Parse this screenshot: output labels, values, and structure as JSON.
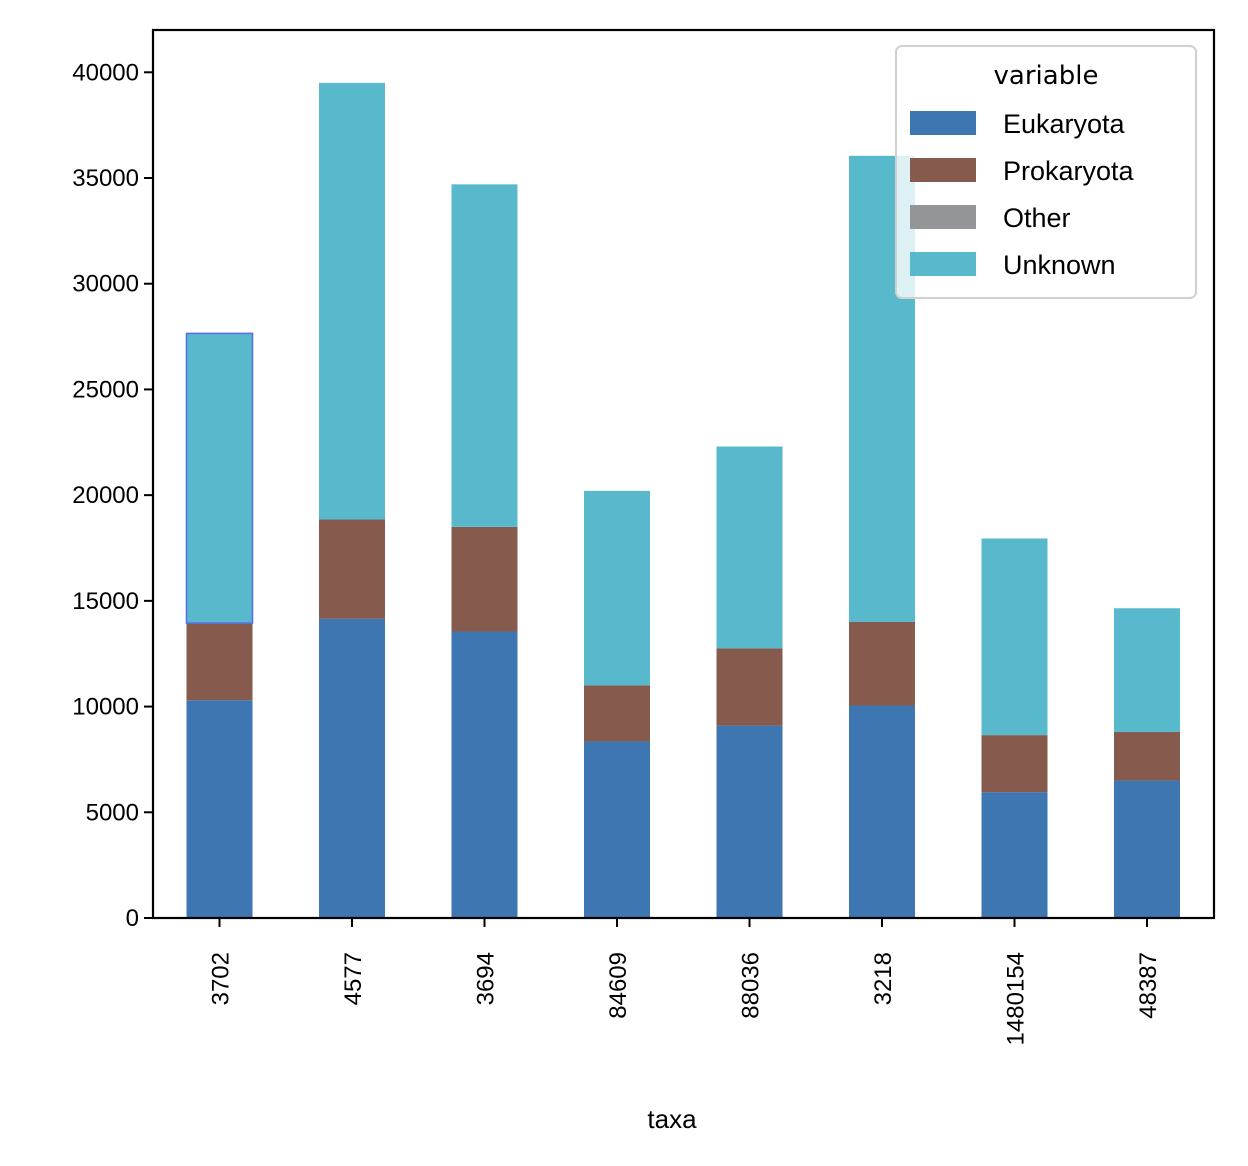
{
  "chart_data": {
    "type": "bar",
    "stacked": true,
    "xlabel": "taxa",
    "ylabel": "",
    "categories": [
      "3702",
      "4577",
      "3694",
      "84609",
      "88036",
      "3218",
      "1480154",
      "48387"
    ],
    "ylim": [
      0,
      42000
    ],
    "yticks": [
      0,
      5000,
      10000,
      15000,
      20000,
      25000,
      30000,
      35000,
      40000
    ],
    "legend": {
      "title": "variable",
      "position": "top-right"
    },
    "series": [
      {
        "name": "Eukaryota",
        "color": "#3d76b0",
        "values": [
          10300,
          14150,
          13550,
          8350,
          9100,
          10050,
          5950,
          6500
        ]
      },
      {
        "name": "Prokaryota",
        "color": "#875a4e",
        "values": [
          3650,
          4700,
          4950,
          2650,
          3650,
          3950,
          2700,
          2300
        ]
      },
      {
        "name": "Other",
        "color": "#939598",
        "values": [
          0,
          0,
          0,
          0,
          0,
          0,
          0,
          0
        ]
      },
      {
        "name": "Unknown",
        "color": "#58b9cc",
        "values": [
          13700,
          20650,
          16200,
          9200,
          9550,
          22050,
          9300,
          5850
        ]
      }
    ],
    "grid": false,
    "highlight": {
      "category": "3702",
      "series": "Unknown",
      "color": "#5a6fe8"
    }
  }
}
